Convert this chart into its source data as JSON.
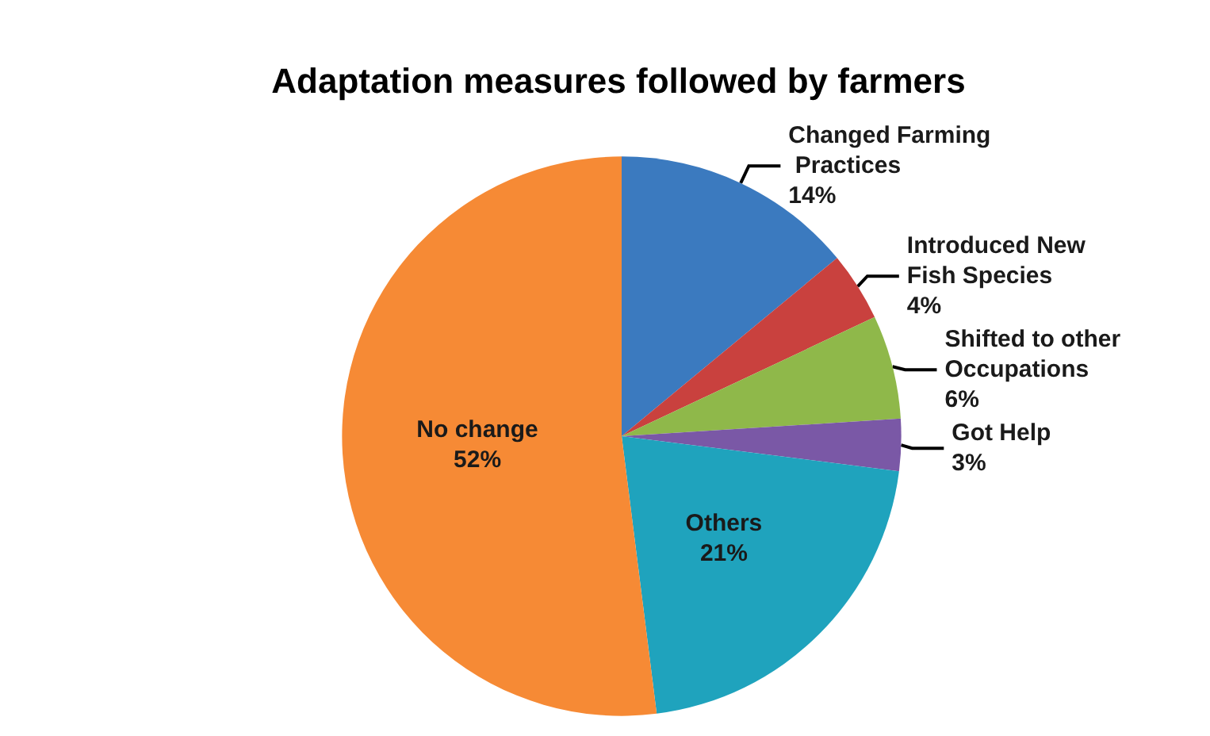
{
  "chart_data": {
    "type": "pie",
    "title": "Adaptation measures followed by farmers",
    "categories": [
      "Changed Farming Practices",
      "Introduced New Fish Species",
      "Shifted to other Occupations",
      "Got Help",
      "Others",
      "No change"
    ],
    "values": [
      14,
      4,
      6,
      3,
      21,
      52
    ],
    "value_labels": [
      "14%",
      "4%",
      "6%",
      "3%",
      "21%",
      "52%"
    ],
    "colors": [
      "#3b7abf",
      "#c9413e",
      "#8fb84a",
      "#7a58a6",
      "#1fa3bd",
      "#f68a35"
    ],
    "legend": false
  }
}
